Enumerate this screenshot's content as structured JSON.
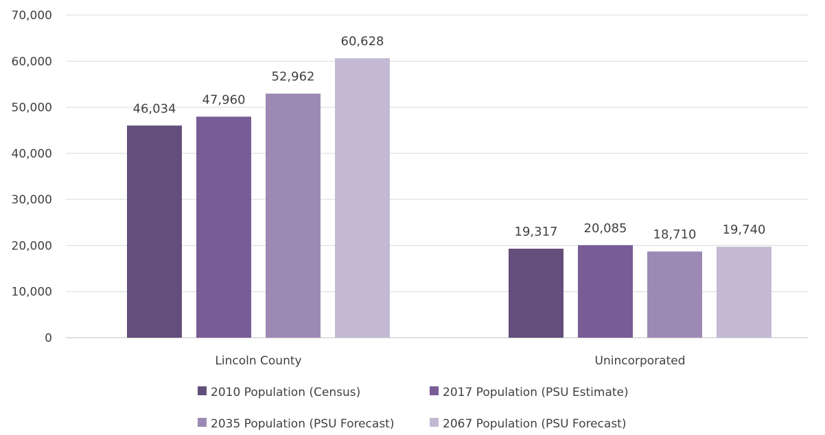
{
  "chart_data": {
    "type": "bar",
    "categories": [
      "Lincoln County",
      "Unincorporated"
    ],
    "series": [
      {
        "name": "2010 Population (Census)",
        "values": [
          46034,
          19317
        ],
        "color": "#634e7c"
      },
      {
        "name": "2017 Population (PSU Estimate)",
        "values": [
          47960,
          20085
        ],
        "color": "#785c96"
      },
      {
        "name": "2035 Population (PSU Forecast)",
        "values": [
          52962,
          18710
        ],
        "color": "#9c8ab4"
      },
      {
        "name": "2067 Population (PSU Forecast)",
        "values": [
          60628,
          19740
        ],
        "color": "#c3b9d2"
      }
    ],
    "data_labels": [
      [
        "46,034",
        "19,317"
      ],
      [
        "47,960",
        "20,085"
      ],
      [
        "52,962",
        "18,710"
      ],
      [
        "60,628",
        "19,740"
      ]
    ],
    "ylim": [
      0,
      70000
    ],
    "yticks": [
      0,
      10000,
      20000,
      30000,
      40000,
      50000,
      60000,
      70000
    ],
    "ytick_labels": [
      "0",
      "10,000",
      "20,000",
      "30,000",
      "40,000",
      "50,000",
      "60,000",
      "70,000"
    ],
    "grid": true,
    "legend_position": "bottom",
    "title": "",
    "xlabel": "",
    "ylabel": ""
  }
}
